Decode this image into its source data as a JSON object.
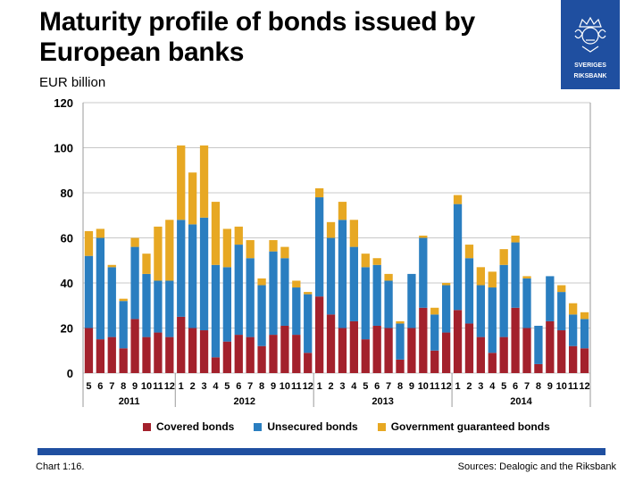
{
  "title": "Maturity profile of bonds issued by European banks",
  "unit": "EUR billion",
  "logo": {
    "text_top": "SVERIGES",
    "text_bottom": "RIKSBANK",
    "color": "#1f4fa0"
  },
  "footer": {
    "chart_number": "Chart 1:16.",
    "sources": "Sources: Dealogic and the Riksbank"
  },
  "colors": {
    "covered": "#a3212c",
    "unsecured": "#2a7ec0",
    "guaranteed": "#e7a823",
    "grid": "#c8c8c8",
    "brand": "#1f4fa0"
  },
  "chart_data": {
    "type": "bar",
    "stacked": true,
    "title": "Maturity profile of bonds issued by European banks",
    "ylabel": "EUR billion",
    "ylim": [
      0,
      120
    ],
    "yticks": [
      0,
      20,
      40,
      60,
      80,
      100,
      120
    ],
    "grid": true,
    "legend_position": "bottom",
    "years": [
      {
        "label": "2011",
        "months": [
          "5",
          "6",
          "7",
          "8",
          "9",
          "10",
          "11",
          "12"
        ]
      },
      {
        "label": "2012",
        "months": [
          "1",
          "2",
          "3",
          "4",
          "5",
          "6",
          "7",
          "8",
          "9",
          "10",
          "11",
          "12"
        ]
      },
      {
        "label": "2013",
        "months": [
          "1",
          "2",
          "3",
          "4",
          "5",
          "6",
          "7",
          "8",
          "9",
          "10",
          "11",
          "12"
        ]
      },
      {
        "label": "2014",
        "months": [
          "1",
          "2",
          "3",
          "4",
          "5",
          "6",
          "7",
          "8",
          "9",
          "10",
          "11",
          "12"
        ]
      }
    ],
    "series": [
      {
        "name": "Covered bonds",
        "color": "#a3212c",
        "values": [
          20,
          15,
          16,
          11,
          24,
          16,
          18,
          16,
          25,
          20,
          19,
          7,
          14,
          17,
          16,
          12,
          17,
          21,
          17,
          9,
          34,
          26,
          20,
          23,
          15,
          21,
          20,
          6,
          20,
          29,
          10,
          18,
          28,
          22,
          16,
          9,
          16,
          29,
          20,
          4,
          23,
          19,
          12,
          11
        ]
      },
      {
        "name": "Unsecured bonds",
        "color": "#2a7ec0",
        "values": [
          32,
          45,
          31,
          21,
          32,
          28,
          23,
          25,
          43,
          46,
          50,
          41,
          33,
          40,
          35,
          27,
          37,
          30,
          21,
          26,
          44,
          34,
          48,
          33,
          32,
          27,
          21,
          16,
          24,
          31,
          16,
          21,
          47,
          29,
          23,
          29,
          32,
          29,
          22,
          17,
          20,
          17,
          14,
          13
        ]
      },
      {
        "name": "Government guaranteed bonds",
        "color": "#e7a823",
        "values": [
          11,
          4,
          1,
          1,
          4,
          9,
          24,
          27,
          33,
          23,
          32,
          28,
          17,
          8,
          8,
          3,
          5,
          5,
          3,
          1,
          4,
          7,
          8,
          12,
          6,
          3,
          3,
          1,
          0,
          1,
          3,
          1,
          4,
          6,
          8,
          7,
          7,
          3,
          1,
          0,
          0,
          3,
          5,
          3
        ]
      }
    ]
  }
}
